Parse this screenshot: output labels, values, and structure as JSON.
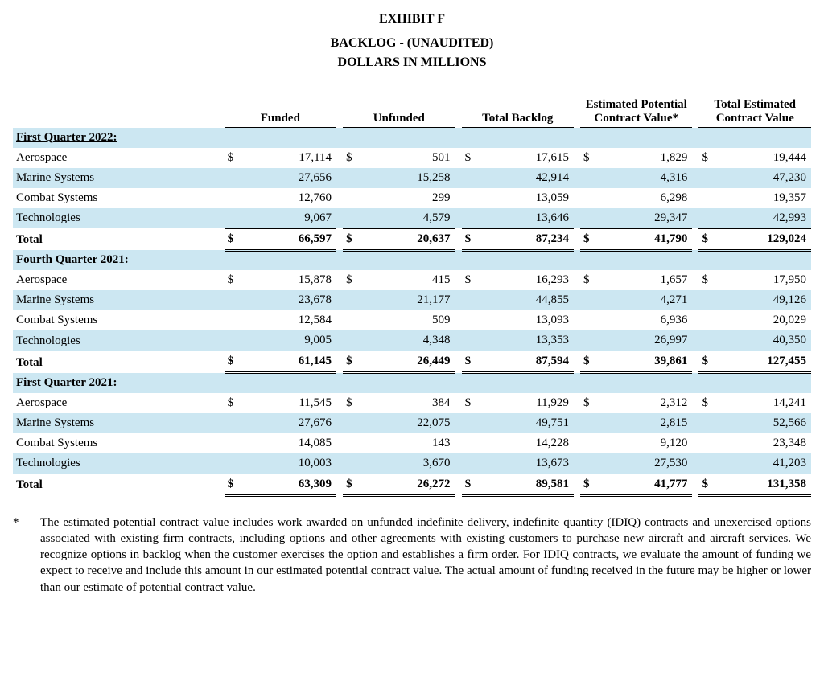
{
  "header": {
    "line1": "EXHIBIT F",
    "line2": "BACKLOG - (UNAUDITED)",
    "line3": "DOLLARS IN MILLIONS"
  },
  "columns": [
    "Funded",
    "Unfunded",
    "Total Backlog",
    "Estimated Potential Contract Value*",
    "Total Estimated Contract Value"
  ],
  "colors": {
    "band": "#cce7f2",
    "rule": "#000000",
    "text": "#000000",
    "background": "#ffffff"
  },
  "typography": {
    "font_family": "Times New Roman",
    "body_fontsize_pt": 11,
    "header_fontsize_pt": 12,
    "header_weight": "bold"
  },
  "currency_symbol": "$",
  "sections": [
    {
      "title": "First Quarter 2022:",
      "rows": [
        {
          "label": "Aerospace",
          "show_sym": true,
          "vals": [
            "17,114",
            "501",
            "17,615",
            "1,829",
            "19,444"
          ]
        },
        {
          "label": "Marine Systems",
          "show_sym": false,
          "vals": [
            "27,656",
            "15,258",
            "42,914",
            "4,316",
            "47,230"
          ],
          "band": true
        },
        {
          "label": "Combat Systems",
          "show_sym": false,
          "vals": [
            "12,760",
            "299",
            "13,059",
            "6,298",
            "19,357"
          ]
        },
        {
          "label": "Technologies",
          "show_sym": false,
          "vals": [
            "9,067",
            "4,579",
            "13,646",
            "29,347",
            "42,993"
          ],
          "band": true
        }
      ],
      "total": {
        "label": "Total",
        "vals": [
          "66,597",
          "20,637",
          "87,234",
          "41,790",
          "129,024"
        ]
      }
    },
    {
      "title": "Fourth Quarter 2021:",
      "rows": [
        {
          "label": "Aerospace",
          "show_sym": true,
          "vals": [
            "15,878",
            "415",
            "16,293",
            "1,657",
            "17,950"
          ]
        },
        {
          "label": "Marine Systems",
          "show_sym": false,
          "vals": [
            "23,678",
            "21,177",
            "44,855",
            "4,271",
            "49,126"
          ],
          "band": true
        },
        {
          "label": "Combat Systems",
          "show_sym": false,
          "vals": [
            "12,584",
            "509",
            "13,093",
            "6,936",
            "20,029"
          ]
        },
        {
          "label": "Technologies",
          "show_sym": false,
          "vals": [
            "9,005",
            "4,348",
            "13,353",
            "26,997",
            "40,350"
          ],
          "band": true
        }
      ],
      "total": {
        "label": "Total",
        "vals": [
          "61,145",
          "26,449",
          "87,594",
          "39,861",
          "127,455"
        ]
      }
    },
    {
      "title": "First Quarter 2021:",
      "rows": [
        {
          "label": "Aerospace",
          "show_sym": true,
          "vals": [
            "11,545",
            "384",
            "11,929",
            "2,312",
            "14,241"
          ]
        },
        {
          "label": "Marine Systems",
          "show_sym": false,
          "vals": [
            "27,676",
            "22,075",
            "49,751",
            "2,815",
            "52,566"
          ],
          "band": true
        },
        {
          "label": "Combat Systems",
          "show_sym": false,
          "vals": [
            "14,085",
            "143",
            "14,228",
            "9,120",
            "23,348"
          ]
        },
        {
          "label": "Technologies",
          "show_sym": false,
          "vals": [
            "10,003",
            "3,670",
            "13,673",
            "27,530",
            "41,203"
          ],
          "band": true
        }
      ],
      "total": {
        "label": "Total",
        "vals": [
          "63,309",
          "26,272",
          "89,581",
          "41,777",
          "131,358"
        ]
      }
    }
  ],
  "footnote": {
    "mark": "*",
    "text": "The estimated potential contract value includes work awarded on unfunded indefinite delivery, indefinite quantity (IDIQ) contracts and unexercised options associated with existing firm contracts, including options and other agreements with existing customers to purchase new aircraft and aircraft services. We recognize options in backlog when the customer exercises the option and establishes a firm order. For IDIQ contracts, we evaluate the amount of funding we expect to receive and include this amount in our estimated potential contract value. The actual amount of funding received in the future may be higher or lower than our estimate of potential contract value."
  }
}
